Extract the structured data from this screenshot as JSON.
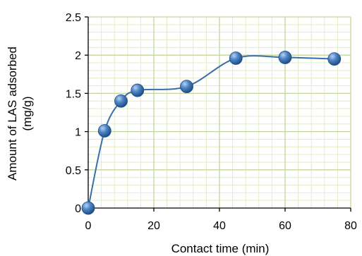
{
  "chart_data": {
    "type": "line",
    "title": "",
    "xlabel": "Contact time (min)",
    "ylabel_line1": "Amount of LAS adsorbed",
    "ylabel_line2": "(mg/g)",
    "xlim": [
      0,
      80
    ],
    "ylim": [
      0,
      2.5
    ],
    "x_ticks": [
      "0",
      "20",
      "40",
      "60",
      "80"
    ],
    "y_ticks": [
      "0",
      "0.5",
      "1",
      "1.5",
      "2",
      "2.5"
    ],
    "grid": true,
    "smoothed": true,
    "marker": "sphere",
    "series": [
      {
        "x": [
          0,
          5,
          10,
          15,
          30,
          45,
          60,
          75
        ],
        "y": [
          0,
          1.01,
          1.4,
          1.54,
          1.59,
          1.96,
          1.97,
          1.95
        ]
      }
    ],
    "colors": {
      "line": "#3A6EA8",
      "marker_light": "#B7D2F2",
      "marker_mid": "#4F86C6",
      "marker_dark": "#1F4E86",
      "grid_major": "#C3D69B",
      "grid_minor": "#E2ECC9",
      "axis": "#000000"
    }
  }
}
